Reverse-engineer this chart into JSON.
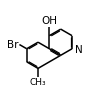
{
  "background_color": "#ffffff",
  "bond_color": "#000000",
  "figsize": [
    1.02,
    0.88
  ],
  "dpi": 100,
  "bond_lw": 1.1,
  "inner_lw": 0.9,
  "inner_off": 0.013,
  "label_OH": "OH",
  "label_Br": "Br",
  "label_Me": "CH₃",
  "label_N": "N",
  "font_size": 7.5,
  "font_size_me": 6.5
}
